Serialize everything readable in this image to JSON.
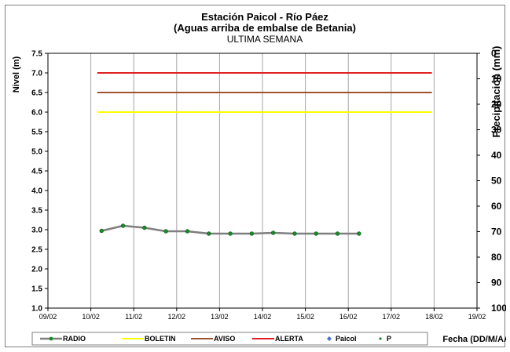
{
  "chart_data": {
    "type": "line",
    "title": "Estación Paicol  - Río Páez",
    "subtitle": "(Aguas arriba de embalse de Betania)",
    "subtitle2": "ULTIMA SEMANA",
    "ylabel": "Nivel  (m)",
    "y2label": "Precipitación (mm)",
    "xlabel": "Fecha  (DD/M/AA)",
    "ylim": [
      1.0,
      7.5
    ],
    "y_ticks": [
      "7.5",
      "7.0",
      "6.5",
      "6.0",
      "5.5",
      "5.0",
      "4.5",
      "4.0",
      "3.5",
      "3.0",
      "2.5",
      "2.0",
      "1.5",
      "1.0"
    ],
    "y2lim": [
      0,
      100
    ],
    "y2_ticks": [
      "0",
      "10",
      "20",
      "30",
      "40",
      "50",
      "60",
      "70",
      "80",
      "90",
      "100"
    ],
    "x_ticks": [
      "09/02",
      "10/02",
      "11/02",
      "12/02",
      "13/02",
      "14/02",
      "15/02",
      "16/02",
      "17/02",
      "18/02",
      "19/02"
    ],
    "xlim": [
      9,
      19
    ],
    "grid": "vertical",
    "legend_position": "bottom",
    "series": [
      {
        "name": "RADIO",
        "color": "#7f7f7f",
        "marker_color": "#1a8a2a",
        "x": [
          10.25,
          10.75,
          11.25,
          11.75,
          12.25,
          12.75,
          13.25,
          13.75,
          14.25,
          14.75,
          15.25,
          15.75,
          16.25
        ],
        "values": [
          2.97,
          3.1,
          3.05,
          2.96,
          2.96,
          2.9,
          2.9,
          2.9,
          2.92,
          2.9,
          2.9,
          2.9,
          2.9
        ]
      },
      {
        "name": "BOLETIN",
        "color": "#ffff00",
        "x": [
          10.15,
          17.95
        ],
        "values": [
          6.0,
          6.0
        ]
      },
      {
        "name": "AVISO",
        "color": "#a0522d",
        "x": [
          10.15,
          17.95
        ],
        "values": [
          6.5,
          6.5
        ]
      },
      {
        "name": "ALERTA",
        "color": "#e02020",
        "x": [
          10.15,
          17.95
        ],
        "values": [
          7.0,
          7.0
        ]
      },
      {
        "name": "Paicol",
        "color": "#4472c4",
        "x": [],
        "values": []
      },
      {
        "name": "P",
        "color": "#1a8a2a",
        "x": [],
        "values": []
      }
    ]
  }
}
